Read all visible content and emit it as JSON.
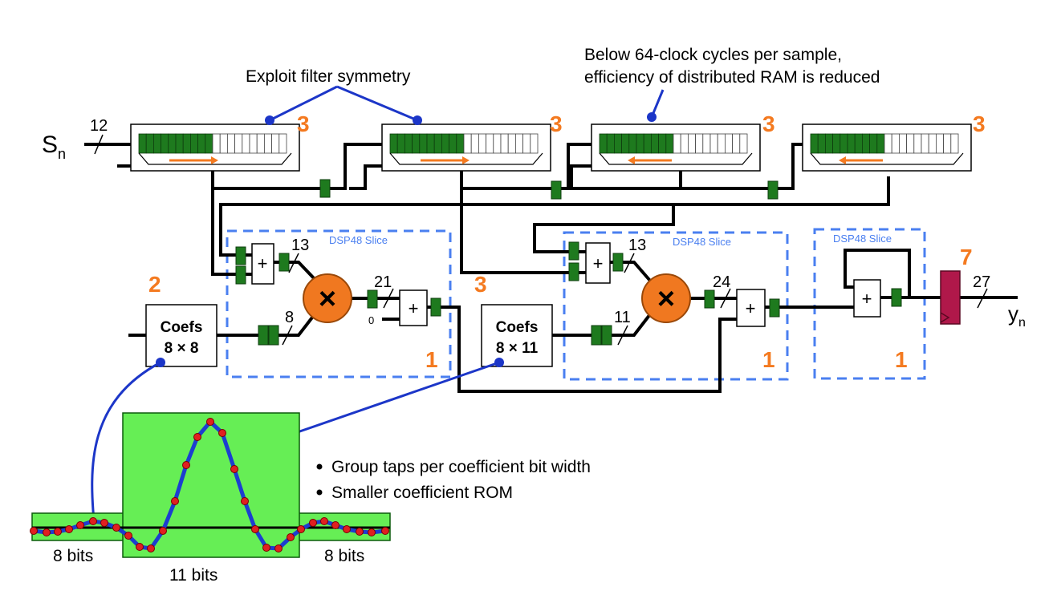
{
  "annotations": {
    "symmetry": "Exploit filter symmetry",
    "ram_line1": "Below 64-clock cycles per sample,",
    "ram_line2": "efficiency of distributed RAM is reduced",
    "bullet1": "Group taps per coefficient bit width",
    "bullet2": "Smaller coefficient ROM"
  },
  "signals": {
    "input_main": "S",
    "input_sub": "n",
    "output_main": "y",
    "output_sub": "n"
  },
  "widths": {
    "input": "12",
    "pre_add_1": "13",
    "coef_1": "8",
    "mult_1": "21",
    "pre_add_2": "13",
    "coef_2": "11",
    "mult_2": "24",
    "output": "27",
    "zero": "0"
  },
  "operators": {
    "add": "+",
    "mult": "×"
  },
  "coefs": [
    {
      "title": "Coefs",
      "size": "8 × 8"
    },
    {
      "title": "Coefs",
      "size": "8 × 11"
    }
  ],
  "dsp_label": "DSP48 Slice",
  "counts": {
    "srl1": "3",
    "srl2": "3",
    "srl3": "3",
    "srl4": "3",
    "coef1": "2",
    "coef2": "3",
    "dsp1": "1",
    "dsp2": "1",
    "dsp3": "1",
    "outreg": "7"
  },
  "bit_labels": {
    "left": "8 bits",
    "center": "11 bits",
    "right": "8 bits"
  },
  "colors": {
    "register": "#1e7a1e",
    "counts": "#f47a20",
    "multiplier": "#f07820",
    "dsp_border": "#4a7ff0",
    "callout": "#1c36c8",
    "output_reg": "#b0184a",
    "coef_band": "#66ee55",
    "waveform": "#1c3ed0",
    "tap_points": "#e02020"
  }
}
